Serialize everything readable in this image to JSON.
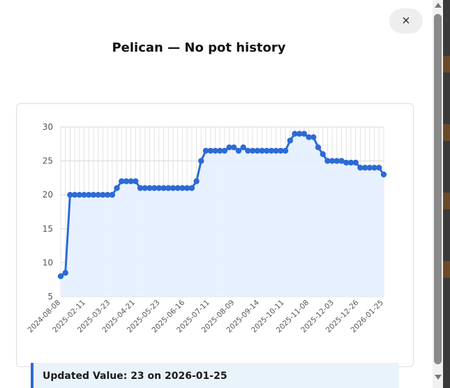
{
  "modal": {
    "title": "Pelican — No pot history",
    "close_label": "×",
    "updated_text": "Updated Value: 23 on 2026-01-25"
  },
  "colors": {
    "line": "#2c6ad6",
    "fill": "#e6efff",
    "grid": "#e3e3e3",
    "accent_bar": "#2c6ad6"
  },
  "icons": {
    "close": "close-icon",
    "scroll_up": "scroll-up-arrow-icon",
    "scroll_down": "scroll-down-arrow-icon"
  },
  "chart_data": {
    "type": "line",
    "title": "",
    "xlabel": "",
    "ylabel": "",
    "ylim": [
      5,
      30
    ],
    "yticks": [
      5,
      10,
      15,
      20,
      25,
      30
    ],
    "grid": true,
    "fill": true,
    "x_tick_labels": [
      "2024-08-08",
      "2025-02-11",
      "2025-03-23",
      "2025-04-21",
      "2025-05-23",
      "2025-06-16",
      "2025-07-11",
      "2025-08-09",
      "2025-09-14",
      "2025-10-11",
      "2025-11-08",
      "2025-12-03",
      "2025-12-26",
      "2026-01-25"
    ],
    "values": [
      8,
      8.5,
      20,
      20,
      20,
      20,
      20,
      20,
      20,
      20,
      20,
      20,
      21,
      22,
      22,
      22,
      22,
      21,
      21,
      21,
      21,
      21,
      21,
      21,
      21,
      21,
      21,
      21,
      21,
      22,
      25,
      26.5,
      26.5,
      26.5,
      26.5,
      26.5,
      27,
      27,
      26.5,
      27,
      26.5,
      26.5,
      26.5,
      26.5,
      26.5,
      26.5,
      26.5,
      26.5,
      26.5,
      28,
      29,
      29,
      29,
      28.5,
      28.5,
      27,
      26,
      25,
      25,
      25,
      25,
      24.75,
      24.75,
      24.75,
      24,
      24,
      24,
      24,
      24,
      23
    ]
  }
}
